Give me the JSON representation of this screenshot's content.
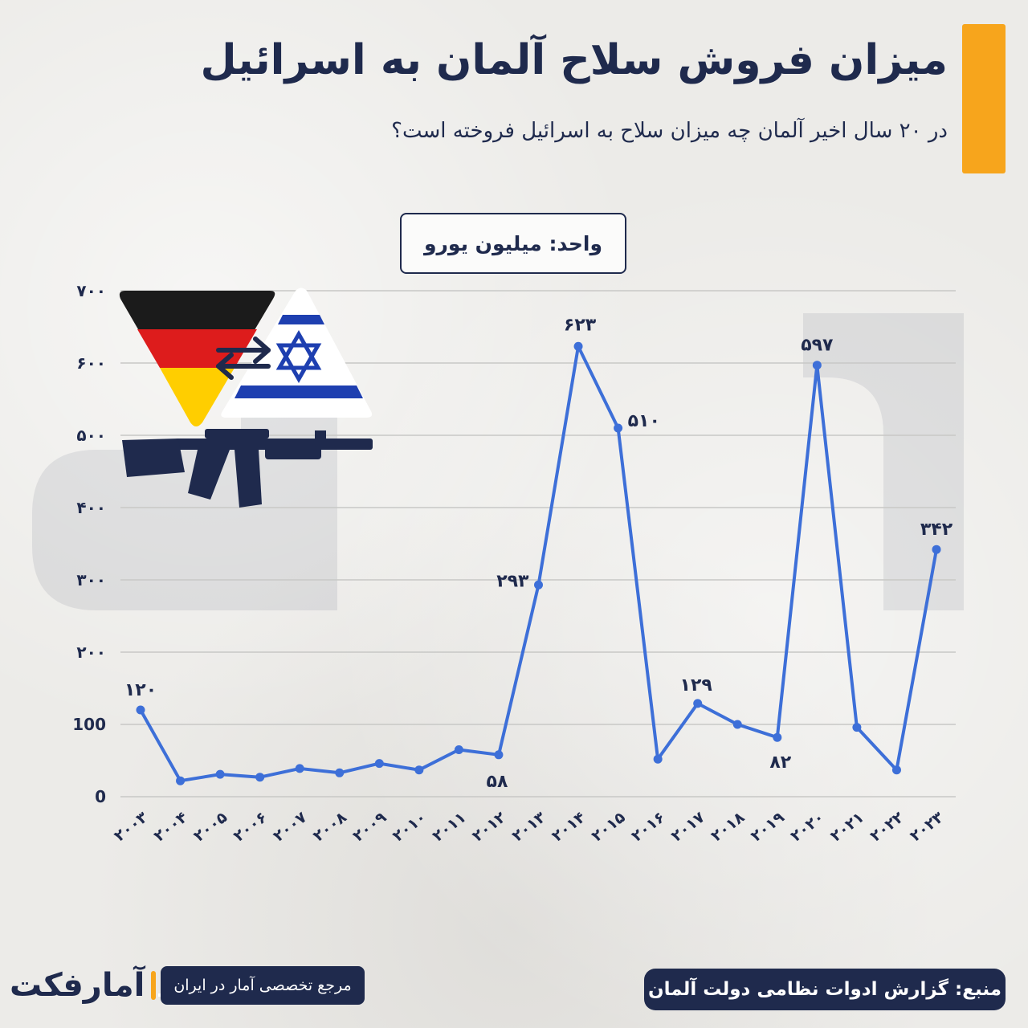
{
  "header": {
    "title": "میزان فروش سلاح آلمان به اسرائیل",
    "subtitle": "در ۲۰ سال اخیر آلمان چه میزان سلاح به اسرائیل فروخته است؟"
  },
  "unit_label": "واحد: میلیون یورو",
  "footer": {
    "source": "منبع: گزارش ادوات نظامی دولت آلمان",
    "reference": "مرجع تخصصی آمار در ایران",
    "logo_text": "آمارفکت"
  },
  "colors": {
    "line": "#3d6fd8",
    "text": "#1f2a4d",
    "accent": "#f7a51c"
  },
  "illustration": {
    "icons": [
      "germany-flag-triangle",
      "israel-flag-triangle",
      "exchange-arrows-icon",
      "rifle-icon"
    ]
  },
  "chart_data": {
    "type": "line",
    "title": "",
    "xlabel": "",
    "ylabel": "",
    "ylim": [
      0,
      700
    ],
    "y_ticks": [
      "0",
      "100",
      "۲۰۰",
      "۳۰۰",
      "۴۰۰",
      "۵۰۰",
      "۶۰۰",
      "۷۰۰"
    ],
    "y_tick_values": [
      0,
      100,
      200,
      300,
      400,
      500,
      600,
      700
    ],
    "x": [
      "۲۰۰۳",
      "۲۰۰۴",
      "۲۰۰۵",
      "۲۰۰۶",
      "۲۰۰۷",
      "۲۰۰۸",
      "۲۰۰۹",
      "۲۰۱۰",
      "۲۰۱۱",
      "۲۰۱۲",
      "۲۰۱۳",
      "۲۰۱۴",
      "۲۰۱۵",
      "۲۰۱۶",
      "۲۰۱۷",
      "۲۰۱۸",
      "۲۰۱۹",
      "۲۰۲۰",
      "۲۰۲۱",
      "۲۰۲۲",
      "۲۰۲۳"
    ],
    "series": [
      {
        "values": [
          120,
          22,
          31,
          27,
          39,
          33,
          46,
          37,
          65,
          58,
          293,
          623,
          510,
          52,
          129,
          100,
          82,
          597,
          96,
          37,
          342
        ]
      }
    ],
    "data_labels": [
      {
        "index": 0,
        "text": "۱۲۰"
      },
      {
        "index": 9,
        "text": "۵۸"
      },
      {
        "index": 10,
        "text": "۲۹۳"
      },
      {
        "index": 11,
        "text": "۶۲۳"
      },
      {
        "index": 12,
        "text": "۵۱۰"
      },
      {
        "index": 14,
        "text": "۱۲۹"
      },
      {
        "index": 16,
        "text": "۸۲"
      },
      {
        "index": 17,
        "text": "۵۹۷"
      },
      {
        "index": 20,
        "text": "۳۴۲"
      }
    ],
    "grid": true
  }
}
